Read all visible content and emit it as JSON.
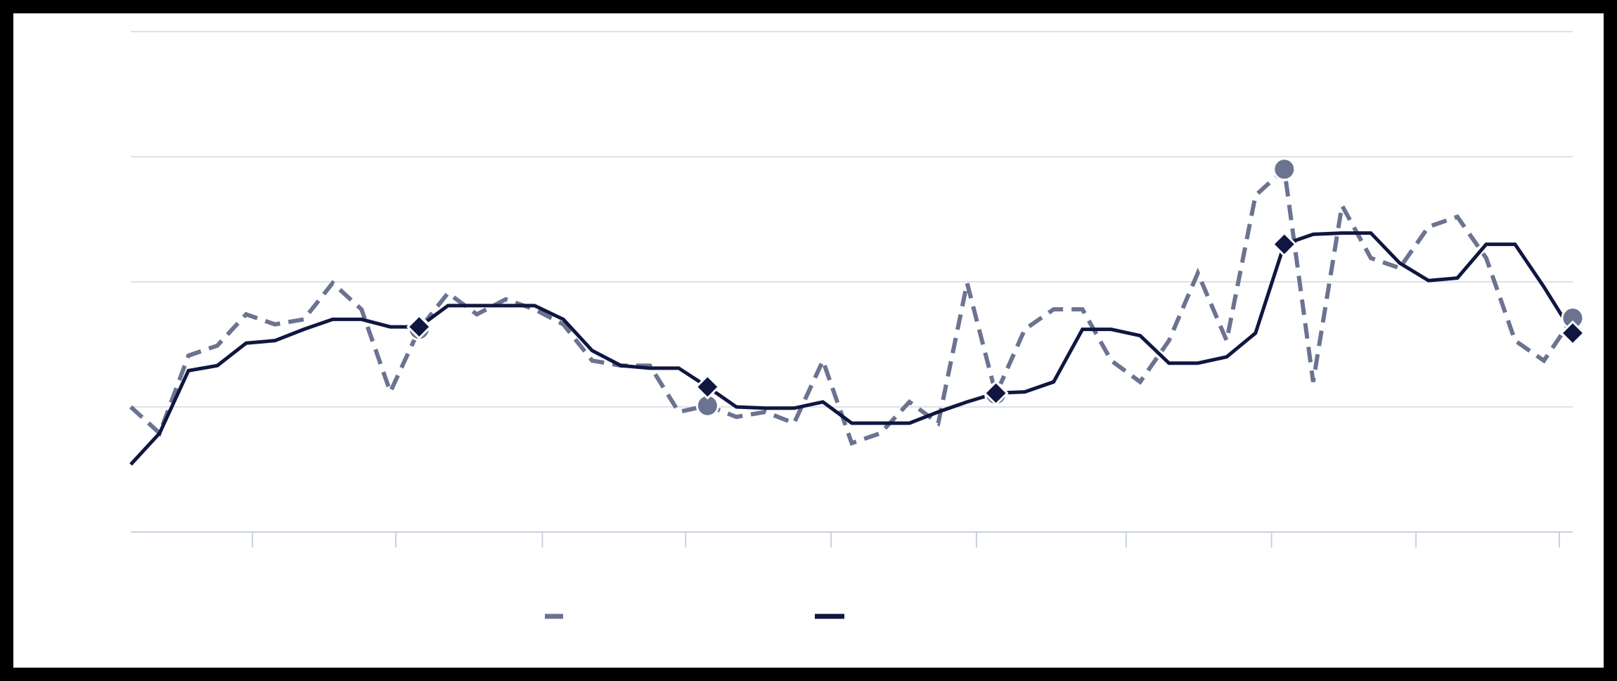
{
  "chart_data": {
    "type": "line",
    "x": [
      0,
      2,
      4,
      6,
      8,
      10,
      12,
      14,
      16,
      18,
      20,
      22,
      24,
      26,
      28,
      30,
      32,
      34,
      36,
      38,
      40,
      42,
      44,
      46,
      48,
      50,
      52,
      54,
      56,
      58,
      60,
      62,
      64,
      66,
      68,
      70,
      72,
      74,
      76,
      78,
      80,
      82,
      84,
      86,
      88,
      90,
      92,
      94,
      96,
      98,
      100
    ],
    "series": [
      {
        "color": "#6b7390",
        "line_style": "dashed",
        "marker": "circle",
        "marker_every": 10,
        "values": [
          1.0,
          0.79,
          1.41,
          1.49,
          1.74,
          1.66,
          1.7,
          1.99,
          1.78,
          1.12,
          1.62,
          1.91,
          1.74,
          1.86,
          1.78,
          1.66,
          1.37,
          1.33,
          1.33,
          0.96,
          1.01,
          0.92,
          0.96,
          0.87,
          1.37,
          0.71,
          0.79,
          1.04,
          0.87,
          1.99,
          1.1,
          1.62,
          1.78,
          1.78,
          1.37,
          1.2,
          1.53,
          2.07,
          1.53,
          2.69,
          2.9,
          1.2,
          2.61,
          2.19,
          2.11,
          2.44,
          2.52,
          2.19,
          1.53,
          1.37,
          1.71
        ]
      },
      {
        "color": "#0f1740",
        "line_style": "solid",
        "marker": "diamond",
        "marker_every": 10,
        "values": [
          0.54,
          0.79,
          1.29,
          1.33,
          1.51,
          1.53,
          1.62,
          1.7,
          1.7,
          1.64,
          1.64,
          1.81,
          1.81,
          1.81,
          1.81,
          1.7,
          1.45,
          1.33,
          1.31,
          1.31,
          1.16,
          1.0,
          0.99,
          0.99,
          1.04,
          0.87,
          0.87,
          0.87,
          0.96,
          1.04,
          1.11,
          1.12,
          1.2,
          1.62,
          1.62,
          1.57,
          1.35,
          1.35,
          1.4,
          1.59,
          2.3,
          2.38,
          2.39,
          2.39,
          2.15,
          2.01,
          2.03,
          2.3,
          2.3,
          1.96,
          1.59
        ]
      }
    ],
    "xlim": [
      0,
      100
    ],
    "xticks": [
      8.44,
      18.38,
      28.54,
      38.48,
      48.57,
      58.65,
      69.03,
      79.11,
      89.13,
      99.07
    ],
    "ylim": [
      0,
      4
    ],
    "yticks": [
      1,
      2,
      3,
      4
    ],
    "grid": true
  }
}
